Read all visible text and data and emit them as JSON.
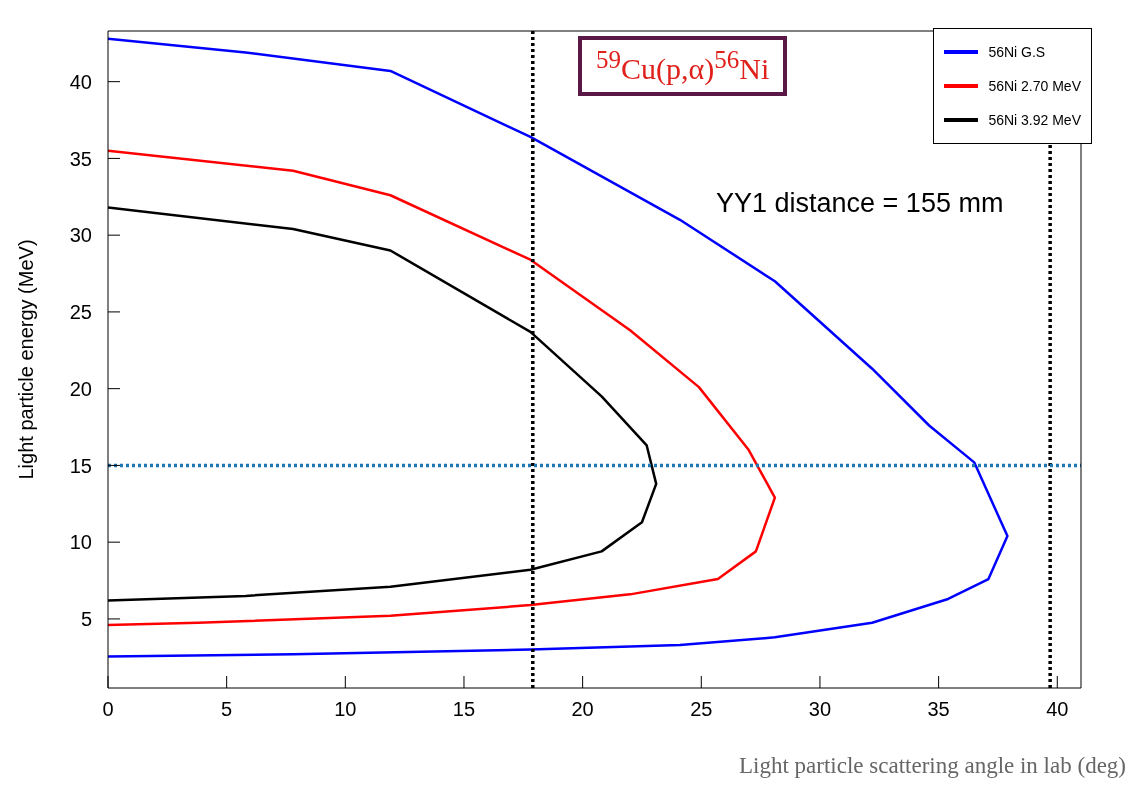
{
  "chart_data": {
    "type": "line",
    "xlabel": "Light particle scattering angle in lab (deg)",
    "ylabel": "Light particle energy (MeV)",
    "xlim": [
      0,
      41
    ],
    "xticks": [
      0,
      5,
      10,
      15,
      20,
      25,
      30,
      35,
      40
    ],
    "ylim": [
      0.5,
      43.3
    ],
    "yticks": [
      5,
      10,
      15,
      20,
      25,
      30,
      35,
      40
    ],
    "grid": false,
    "legend": "top right",
    "marker": "none",
    "line_style": "solid",
    "series": [
      {
        "name": "56Ni G.S",
        "color": "#0000ff",
        "x": [
          0,
          5.8,
          11.9,
          17.8,
          24.1,
          28.1,
          32.2,
          34.6,
          36.5,
          37.9,
          37.1,
          35.4,
          32.2,
          28.1,
          24.1,
          17.8,
          7.8,
          0
        ],
        "values": [
          42.8,
          41.9,
          40.7,
          36.4,
          31.0,
          27.0,
          21.3,
          17.6,
          15.2,
          10.4,
          7.6,
          6.3,
          4.75,
          3.8,
          3.3,
          3.0,
          2.7,
          2.55
        ]
      },
      {
        "name": "56Ni 2.70 MeV",
        "color": "#ff0000",
        "x": [
          0,
          7.8,
          11.9,
          17.8,
          22.0,
          24.9,
          27.0,
          28.1,
          27.3,
          25.7,
          22.0,
          17.8,
          11.9,
          3.8,
          0
        ],
        "values": [
          35.5,
          34.2,
          32.6,
          28.4,
          23.8,
          20.1,
          16.0,
          12.9,
          9.4,
          7.6,
          6.6,
          5.9,
          5.2,
          4.75,
          4.6
        ]
      },
      {
        "name": "56Ni 3.92 MeV",
        "color": "#000000",
        "x": [
          0,
          7.8,
          11.9,
          17.8,
          20.8,
          22.7,
          23.1,
          22.5,
          20.8,
          17.8,
          11.9,
          5.8,
          0
        ],
        "values": [
          31.8,
          30.4,
          29.0,
          23.7,
          19.5,
          16.3,
          13.8,
          11.3,
          9.4,
          8.2,
          7.1,
          6.5,
          6.2
        ]
      }
    ],
    "ref_lines": [
      {
        "axis": "x",
        "value": 17.9,
        "color": "#000000",
        "line_style": "dotted"
      },
      {
        "axis": "x",
        "value": 39.7,
        "color": "#000000",
        "line_style": "dotted"
      },
      {
        "axis": "y",
        "value": 15,
        "color": "#1f77b4",
        "line_style": "dotted"
      }
    ],
    "annotations": [
      "$^{59}$Cu(p,α)$^{56}$Ni",
      "YY1 distance = 155 mm"
    ]
  }
}
